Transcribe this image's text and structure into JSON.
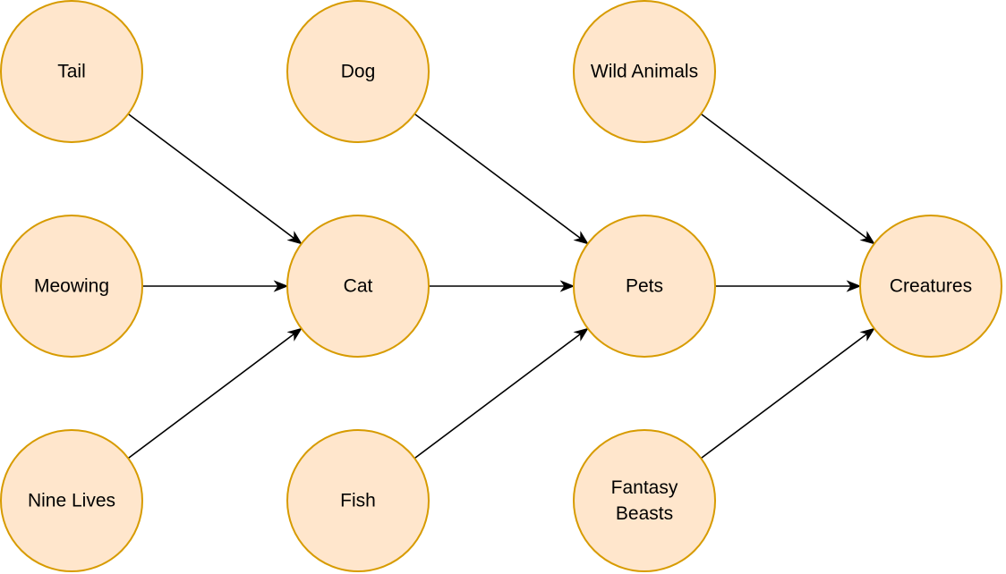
{
  "colors": {
    "node_fill": "#ffe6cc",
    "node_stroke": "#d79b00",
    "edge": "#000000",
    "text": "#000000"
  },
  "nodes": [
    {
      "id": "tail",
      "label": "Tail"
    },
    {
      "id": "dog",
      "label": "Dog"
    },
    {
      "id": "wild-animals",
      "label": "Wild Animals"
    },
    {
      "id": "meowing",
      "label": "Meowing"
    },
    {
      "id": "cat",
      "label": "Cat"
    },
    {
      "id": "pets",
      "label": "Pets"
    },
    {
      "id": "creatures",
      "label": "Creatures"
    },
    {
      "id": "nine-lives",
      "label": "Nine Lives"
    },
    {
      "id": "fish",
      "label": "Fish"
    },
    {
      "id": "fantasy-beasts",
      "label": "Fantasy Beasts",
      "lines": [
        "Fantasy",
        "Beasts"
      ]
    }
  ],
  "edges": [
    {
      "from": "tail",
      "to": "cat"
    },
    {
      "from": "meowing",
      "to": "cat"
    },
    {
      "from": "nine-lives",
      "to": "cat"
    },
    {
      "from": "dog",
      "to": "pets"
    },
    {
      "from": "cat",
      "to": "pets"
    },
    {
      "from": "fish",
      "to": "pets"
    },
    {
      "from": "wild-animals",
      "to": "creatures"
    },
    {
      "from": "pets",
      "to": "creatures"
    },
    {
      "from": "fantasy-beasts",
      "to": "creatures"
    }
  ]
}
